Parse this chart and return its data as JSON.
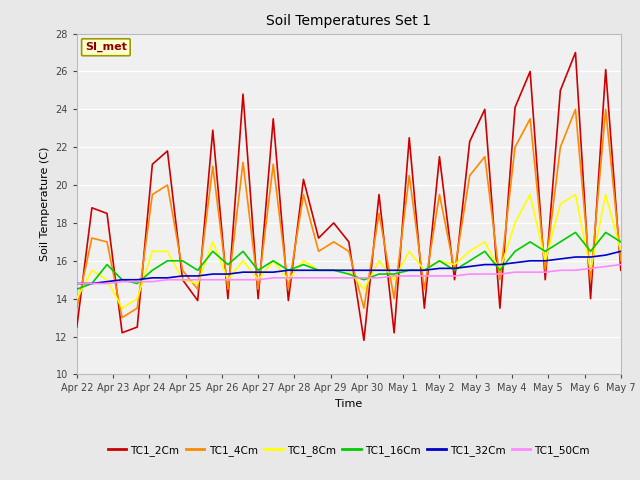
{
  "title": "Soil Temperatures Set 1",
  "xlabel": "Time",
  "ylabel": "Soil Temperature (C)",
  "ylim": [
    10,
    28
  ],
  "yticks": [
    10,
    12,
    14,
    16,
    18,
    20,
    22,
    24,
    26,
    28
  ],
  "x_labels": [
    "Apr 22",
    "Apr 23",
    "Apr 24",
    "Apr 25",
    "Apr 26",
    "Apr 27",
    "Apr 28",
    "Apr 29",
    "Apr 30",
    "May 1",
    "May 2",
    "May 3",
    "May 4",
    "May 5",
    "May 6",
    "May 7"
  ],
  "series_names": [
    "TC1_2Cm",
    "TC1_4Cm",
    "TC1_8Cm",
    "TC1_16Cm",
    "TC1_32Cm",
    "TC1_50Cm"
  ],
  "series_colors": [
    "#cc0000",
    "#ff8800",
    "#ffff00",
    "#00cc00",
    "#0000cc",
    "#ff88ff"
  ],
  "annotation_text": "SI_met",
  "background_color": "#e8e8e8",
  "plot_bg_color": "#f0f0f0",
  "TC1_2Cm": [
    12.5,
    18.8,
    18.5,
    12.2,
    12.5,
    21.1,
    21.8,
    15.0,
    13.9,
    22.9,
    14.0,
    24.8,
    14.0,
    23.5,
    13.9,
    20.3,
    17.2,
    18.0,
    17.0,
    11.8,
    19.5,
    12.2,
    22.5,
    13.5,
    21.5,
    15.0,
    22.3,
    24.0,
    13.5,
    24.1,
    26.0,
    15.0,
    25.0,
    27.0,
    14.0,
    26.1,
    15.5
  ],
  "TC1_4Cm": [
    13.5,
    17.2,
    17.0,
    13.0,
    13.5,
    19.5,
    20.0,
    15.5,
    14.5,
    21.0,
    14.5,
    21.2,
    14.5,
    21.1,
    14.5,
    19.5,
    16.5,
    17.0,
    16.5,
    13.5,
    18.5,
    14.0,
    20.5,
    14.5,
    19.5,
    15.5,
    20.5,
    21.5,
    15.0,
    22.0,
    23.5,
    15.5,
    22.0,
    24.0,
    15.0,
    24.0,
    16.0
  ],
  "TC1_8Cm": [
    14.0,
    15.5,
    15.0,
    13.5,
    14.0,
    16.5,
    16.5,
    15.0,
    14.8,
    17.0,
    15.0,
    16.0,
    15.0,
    16.0,
    15.0,
    16.0,
    15.5,
    15.5,
    15.5,
    14.5,
    16.0,
    15.0,
    16.5,
    15.5,
    16.0,
    15.8,
    16.5,
    17.0,
    15.5,
    18.0,
    19.5,
    16.0,
    19.0,
    19.5,
    15.5,
    19.5,
    16.5
  ],
  "TC1_16Cm": [
    14.5,
    14.8,
    15.8,
    15.0,
    14.8,
    15.5,
    16.0,
    16.0,
    15.5,
    16.5,
    15.8,
    16.5,
    15.5,
    16.0,
    15.5,
    15.8,
    15.5,
    15.5,
    15.3,
    15.0,
    15.3,
    15.3,
    15.5,
    15.5,
    16.0,
    15.5,
    16.0,
    16.5,
    15.5,
    16.5,
    17.0,
    16.5,
    17.0,
    17.5,
    16.5,
    17.5,
    17.0
  ],
  "TC1_32Cm": [
    14.8,
    14.8,
    14.9,
    15.0,
    15.0,
    15.1,
    15.1,
    15.2,
    15.2,
    15.3,
    15.3,
    15.4,
    15.4,
    15.4,
    15.5,
    15.5,
    15.5,
    15.5,
    15.5,
    15.5,
    15.5,
    15.5,
    15.5,
    15.5,
    15.6,
    15.6,
    15.7,
    15.8,
    15.8,
    15.9,
    16.0,
    16.0,
    16.1,
    16.2,
    16.2,
    16.3,
    16.5
  ],
  "TC1_50Cm": [
    14.8,
    14.8,
    14.8,
    14.9,
    14.9,
    14.9,
    15.0,
    15.0,
    15.0,
    15.0,
    15.0,
    15.0,
    15.0,
    15.1,
    15.1,
    15.1,
    15.1,
    15.1,
    15.1,
    15.1,
    15.1,
    15.2,
    15.2,
    15.2,
    15.2,
    15.2,
    15.3,
    15.3,
    15.3,
    15.4,
    15.4,
    15.4,
    15.5,
    15.5,
    15.6,
    15.7,
    15.8
  ]
}
